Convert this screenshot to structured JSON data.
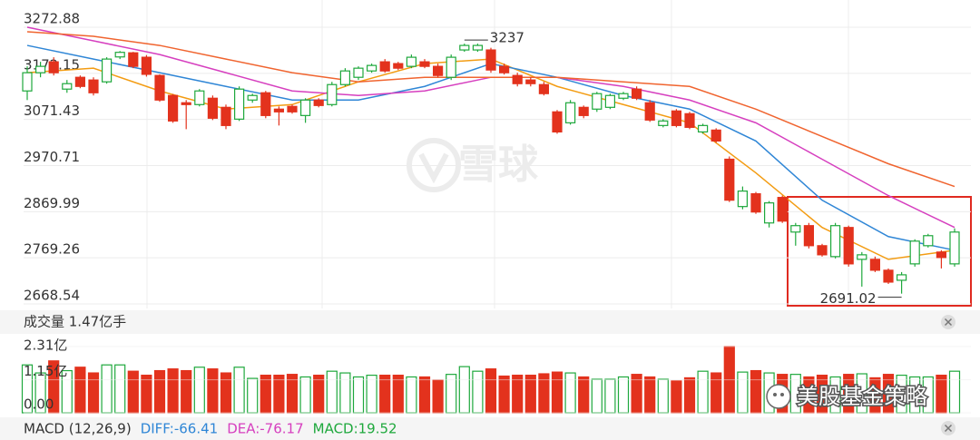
{
  "chart_data": [
    {
      "type": "candlestick",
      "ylim": [
        2668.54,
        3272.88
      ],
      "yticks": [
        3272.88,
        3172.15,
        3071.43,
        2970.71,
        2869.99,
        2769.26,
        2668.54
      ],
      "grid": true,
      "up_color": "#1ea83c",
      "down_color": "#e3321d",
      "open": [
        3133.7,
        3173.5,
        3197.3,
        3137.7,
        3163.5,
        3157.6,
        3153.6,
        3208.0,
        3217.0,
        3207.3,
        3167.5,
        3123.8,
        3107.9,
        3103.9,
        3117.8,
        3097.9,
        3072.1,
        3113.8,
        3129.7,
        3094.0,
        3099.9,
        3080.0,
        3113.8,
        3103.9,
        3147.6,
        3163.5,
        3177.4,
        3197.3,
        3193.4,
        3187.4,
        3197.3,
        3187.4,
        3163.5,
        3223.2,
        3223.2,
        3223.2,
        3187.4,
        3167.5,
        3157.6,
        3147.6,
        3088.0,
        3064.1,
        3097.9,
        3094.0,
        3097.9,
        3117.8,
        3137.7,
        3107.9,
        3058.2,
        3090.0,
        3084.0,
        3044.2,
        3048.2,
        2984.6,
        2881.2,
        2909.1,
        2845.4,
        2901.1,
        2825.5,
        2839.5,
        2795.7,
        2771.9,
        2835.5,
        2765.9,
        2765.9,
        2742.1,
        2720.2,
        2756.0,
        2795.7,
        2781.8,
        2756.0
      ],
      "close": [
        3173.5,
        3187.4,
        3173.5,
        3149.6,
        3143.6,
        3129.7,
        3203.3,
        3218.0,
        3187.4,
        3170.0,
        3113.8,
        3068.1,
        3103.9,
        3133.7,
        3074.1,
        3058.2,
        3137.7,
        3123.8,
        3080.0,
        3088.0,
        3088.0,
        3113.8,
        3101.9,
        3147.6,
        3177.4,
        3183.4,
        3189.4,
        3177.4,
        3183.4,
        3207.3,
        3187.4,
        3167.5,
        3207.3,
        3233.1,
        3233.1,
        3179.4,
        3173.5,
        3149.6,
        3149.6,
        3127.8,
        3044.2,
        3107.9,
        3080.0,
        3127.8,
        3123.8,
        3127.8,
        3117.8,
        3070.1,
        3068.1,
        3058.2,
        3054.2,
        3058.2,
        3024.4,
        2895.1,
        2915.0,
        2869.3,
        2889.2,
        2849.4,
        2839.5,
        2795.7,
        2775.8,
        2839.5,
        2756.0,
        2775.8,
        2742.1,
        2716.2,
        2732.1,
        2805.7,
        2817.6,
        2769.9,
        2825.5
      ],
      "high": [
        3187.4,
        3197.3,
        3207.3,
        3157.6,
        3167.5,
        3163.5,
        3207.3,
        3220.85,
        3219.0,
        3212.0,
        3170.0,
        3127.0,
        3113.8,
        3137.7,
        3123.8,
        3103.9,
        3143.6,
        3127.8,
        3133.7,
        3099.9,
        3103.9,
        3117.8,
        3117.8,
        3153.6,
        3183.4,
        3187.4,
        3193.4,
        3203.3,
        3197.3,
        3213.2,
        3203.3,
        3193.4,
        3213.2,
        3237.0,
        3237.0,
        3228.0,
        3193.4,
        3173.5,
        3163.5,
        3153.6,
        3092.0,
        3113.8,
        3101.9,
        3131.7,
        3127.8,
        3131.7,
        3143.6,
        3113.8,
        3072.1,
        3094.0,
        3088.0,
        3062.1,
        3052.2,
        2990.6,
        2925.0,
        2913.1,
        2893.2,
        2905.1,
        2845.4,
        2845.4,
        2799.7,
        2845.4,
        2839.5,
        2781.8,
        2771.9,
        2746.0,
        2738.1,
        2809.7,
        2821.6,
        2785.8,
        2833.5
      ],
      "low": [
        3113.8,
        3163.5,
        3167.5,
        3129.7,
        3139.7,
        3123.8,
        3149.6,
        3203.3,
        3183.4,
        3165.0,
        3110.0,
        3064.1,
        3050.2,
        3099.9,
        3070.1,
        3050.2,
        3068.1,
        3107.9,
        3074.1,
        3058.2,
        3084.0,
        3064.1,
        3097.9,
        3099.9,
        3143.6,
        3157.6,
        3173.5,
        3173.5,
        3179.4,
        3183.4,
        3183.4,
        3163.5,
        3157.6,
        3219.2,
        3219.2,
        3173.5,
        3169.5,
        3143.6,
        3143.6,
        3123.8,
        3040.2,
        3060.1,
        3074.1,
        3088.0,
        3094.0,
        3113.8,
        3113.8,
        3066.1,
        3054.2,
        3054.2,
        3050.2,
        3040.2,
        3020.4,
        2891.1,
        2875.2,
        2865.3,
        2835.5,
        2845.4,
        2795.7,
        2789.7,
        2771.9,
        2767.9,
        2750.0,
        2706.3,
        2738.1,
        2712.2,
        2691.02,
        2750.0,
        2791.7,
        2746.0,
        2750.0
      ],
      "lines": [
        {
          "color": "#f39c12",
          "x": [
            0,
            5,
            10,
            15,
            20,
            25,
            30,
            35,
            40,
            45,
            50,
            55,
            60,
            65,
            70
          ],
          "values": [
            3173.5,
            3183.4,
            3133.7,
            3094.0,
            3103.9,
            3153.6,
            3193.4,
            3203.3,
            3143.6,
            3103.9,
            3064.1,
            2954.8,
            2835.5,
            2765.9,
            2785.8
          ]
        },
        {
          "color": "#2f86d6",
          "x": [
            0,
            5,
            10,
            15,
            20,
            25,
            30,
            35,
            40,
            45,
            50,
            55,
            60,
            65,
            70
          ],
          "values": [
            3233.1,
            3203.3,
            3173.5,
            3143.6,
            3113.8,
            3113.8,
            3143.6,
            3193.4,
            3163.5,
            3123.8,
            3094.0,
            3024.4,
            2895.1,
            2815.6,
            2785.8
          ]
        },
        {
          "color": "#d63fbf",
          "x": [
            0,
            5,
            10,
            15,
            20,
            25,
            30,
            35,
            40,
            45,
            50,
            55,
            60,
            65,
            70
          ],
          "values": [
            3272.9,
            3243.1,
            3213.2,
            3173.5,
            3133.7,
            3123.8,
            3133.7,
            3163.5,
            3163.5,
            3143.6,
            3113.8,
            3064.1,
            2984.6,
            2905.1,
            2835.5
          ]
        },
        {
          "color": "#f0642f",
          "x": [
            0,
            5,
            10,
            15,
            20,
            25,
            30,
            35,
            40,
            45,
            50,
            55,
            60,
            65,
            70
          ],
          "values": [
            3263.0,
            3253.0,
            3233.1,
            3203.3,
            3173.5,
            3153.6,
            3163.5,
            3163.5,
            3163.5,
            3153.6,
            3143.6,
            3094.0,
            3034.3,
            2974.7,
            2925.0
          ]
        }
      ]
    },
    {
      "type": "bar",
      "title": "成交量 1.47亿手",
      "ylim": [
        0,
        2.31
      ],
      "yticks": [
        {
          "value": 2.31,
          "label": "2.31亿"
        },
        {
          "value": 1.15,
          "label": "1.15亿"
        },
        {
          "value": 0,
          "label": "0.00"
        }
      ],
      "values": [
        1.67,
        1.39,
        1.81,
        1.47,
        1.59,
        1.39,
        1.67,
        1.67,
        1.45,
        1.31,
        1.47,
        1.53,
        1.47,
        1.59,
        1.53,
        1.39,
        1.59,
        1.2,
        1.31,
        1.31,
        1.34,
        1.25,
        1.31,
        1.45,
        1.39,
        1.25,
        1.31,
        1.31,
        1.31,
        1.25,
        1.25,
        1.14,
        1.34,
        1.61,
        1.45,
        1.53,
        1.28,
        1.31,
        1.31,
        1.36,
        1.42,
        1.39,
        1.25,
        1.17,
        1.17,
        1.25,
        1.34,
        1.25,
        1.17,
        1.11,
        1.22,
        1.45,
        1.39,
        2.31,
        1.42,
        1.47,
        1.39,
        1.34,
        1.34,
        1.25,
        1.31,
        1.25,
        1.34,
        1.36,
        1.22,
        1.34,
        1.31,
        1.25,
        1.25,
        1.31,
        1.45
      ]
    },
    {
      "type": "macd",
      "title": "MACD (12,26,9)",
      "labels": [
        {
          "text": "DIFF:-66.41",
          "color": "#2f86d6"
        },
        {
          "text": "DEA:-76.17",
          "color": "#d63fbf"
        },
        {
          "text": "MACD:19.52",
          "color": "#1ea83c"
        }
      ]
    }
  ],
  "watermarks": [
    "雪球",
    "美股基金策略"
  ]
}
